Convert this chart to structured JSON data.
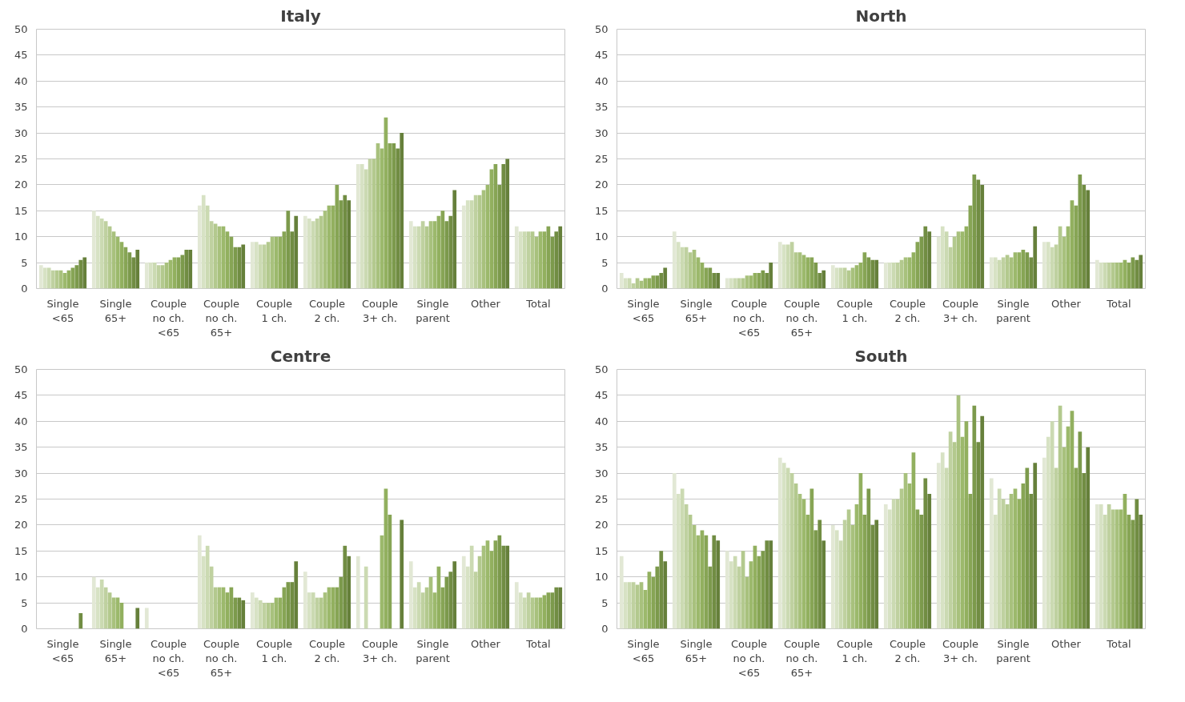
{
  "chart_data": [
    {
      "type": "bar",
      "title": "Italy",
      "categories": [
        "Single\n<65",
        "Single\n65+",
        "Couple\nno ch.\n<65",
        "Couple\nno ch.\n65+",
        "Couple\n1 ch.",
        "Couple\n2 ch.",
        "Couple\n3+ ch.",
        "Single\nparent",
        "Other",
        "Total"
      ],
      "ylim": [
        0,
        50
      ],
      "yticks": [
        0,
        5,
        10,
        15,
        20,
        25,
        30,
        35,
        40,
        45,
        50
      ],
      "grid": "y",
      "series": [
        {
          "color": "#e2e8d5",
          "values": [
            4.5,
            15,
            5,
            16,
            9,
            14,
            24,
            13,
            16,
            12
          ]
        },
        {
          "color": "#d7e2c4",
          "values": [
            4,
            14,
            5,
            18,
            9,
            13.5,
            24,
            12,
            17,
            11
          ]
        },
        {
          "color": "#cbdab2",
          "values": [
            4,
            13.5,
            5,
            16,
            8.5,
            13,
            23,
            12,
            17,
            11
          ]
        },
        {
          "color": "#bfd1a0",
          "values": [
            3.5,
            13,
            4.5,
            13,
            8.5,
            13.5,
            25,
            13,
            18,
            11
          ]
        },
        {
          "color": "#b3c98e",
          "values": [
            3.5,
            12,
            4.5,
            12.5,
            9,
            14,
            25,
            12,
            18,
            11
          ]
        },
        {
          "color": "#a8c17d",
          "values": [
            3.5,
            11,
            5,
            12,
            10,
            15,
            28,
            13,
            19,
            10
          ]
        },
        {
          "color": "#9cb96c",
          "values": [
            3,
            10,
            5.5,
            12,
            10,
            16,
            27,
            13,
            20,
            11
          ]
        },
        {
          "color": "#92b05f",
          "values": [
            3.5,
            9,
            6,
            11,
            10,
            16,
            33,
            14,
            23,
            11
          ]
        },
        {
          "color": "#87a555",
          "values": [
            4,
            8,
            6,
            10,
            11,
            20,
            28,
            15,
            24,
            12
          ]
        },
        {
          "color": "#7c9a4c",
          "values": [
            4.5,
            7,
            6.5,
            8,
            15,
            17,
            28,
            13,
            20,
            10
          ]
        },
        {
          "color": "#718d43",
          "values": [
            5.5,
            6,
            7.5,
            8,
            11,
            18,
            27,
            14,
            24,
            11
          ]
        },
        {
          "color": "#66803b",
          "values": [
            6,
            7.5,
            7.5,
            8.5,
            14,
            17,
            30,
            19,
            25,
            12
          ]
        }
      ]
    },
    {
      "type": "bar",
      "title": "North",
      "categories": [
        "Single\n<65",
        "Single\n65+",
        "Couple\nno ch.\n<65",
        "Couple\nno ch.\n65+",
        "Couple\n1 ch.",
        "Couple\n2 ch.",
        "Couple\n3+ ch.",
        "Single\nparent",
        "Other",
        "Total"
      ],
      "ylim": [
        0,
        50
      ],
      "yticks": [
        0,
        5,
        10,
        15,
        20,
        25,
        30,
        35,
        40,
        45,
        50
      ],
      "grid": "y",
      "series": [
        {
          "color": "#e2e8d5",
          "values": [
            3,
            11,
            2,
            9,
            4.5,
            5,
            10,
            6,
            9,
            5.5
          ]
        },
        {
          "color": "#d7e2c4",
          "values": [
            2,
            9,
            2,
            8.5,
            4,
            5,
            12,
            6,
            9,
            5
          ]
        },
        {
          "color": "#cbdab2",
          "values": [
            2,
            8,
            2,
            8.5,
            4,
            5,
            11,
            5.5,
            8,
            5
          ]
        },
        {
          "color": "#bfd1a0",
          "values": [
            1,
            8,
            2,
            9,
            4,
            5,
            8,
            6,
            8.5,
            5
          ]
        },
        {
          "color": "#b3c98e",
          "values": [
            2,
            7,
            2,
            7,
            3.5,
            5.5,
            10,
            6.5,
            12,
            5
          ]
        },
        {
          "color": "#a8c17d",
          "values": [
            1.5,
            7.5,
            2.5,
            7,
            4,
            6,
            11,
            6,
            10,
            5
          ]
        },
        {
          "color": "#9cb96c",
          "values": [
            2,
            6,
            2.5,
            6.5,
            4.5,
            6,
            11,
            7,
            12,
            5
          ]
        },
        {
          "color": "#92b05f",
          "values": [
            2,
            5,
            3,
            6,
            5,
            7,
            12,
            7,
            17,
            5.5
          ]
        },
        {
          "color": "#87a555",
          "values": [
            2.5,
            4,
            3,
            6,
            7,
            9,
            16,
            7.5,
            16,
            5
          ]
        },
        {
          "color": "#7c9a4c",
          "values": [
            2.5,
            4,
            3.5,
            5,
            6,
            10,
            22,
            7,
            22,
            6
          ]
        },
        {
          "color": "#718d43",
          "values": [
            3,
            3,
            3,
            3,
            5.5,
            12,
            21,
            6,
            20,
            5.5
          ]
        },
        {
          "color": "#66803b",
          "values": [
            4,
            3,
            5,
            3.5,
            5.5,
            11,
            20,
            12,
            19,
            6.5
          ]
        }
      ]
    },
    {
      "type": "bar",
      "title": "Centre",
      "categories": [
        "Single\n<65",
        "Single\n65+",
        "Couple\nno ch.\n<65",
        "Couple\nno ch.\n65+",
        "Couple\n1 ch.",
        "Couple\n2 ch.",
        "Couple\n3+ ch.",
        "Single\nparent",
        "Other",
        "Total"
      ],
      "ylim": [
        0,
        50
      ],
      "yticks": [
        0,
        5,
        10,
        15,
        20,
        25,
        30,
        35,
        40,
        45,
        50
      ],
      "grid": "y",
      "series": [
        {
          "color": "#e2e8d5",
          "values": [
            null,
            10,
            4,
            18,
            7,
            11,
            14,
            13,
            14,
            9
          ]
        },
        {
          "color": "#d7e2c4",
          "values": [
            null,
            8,
            null,
            14,
            6,
            7,
            null,
            8,
            12,
            7
          ]
        },
        {
          "color": "#cbdab2",
          "values": [
            null,
            9.5,
            null,
            16,
            5.5,
            7,
            12,
            9,
            16,
            6
          ]
        },
        {
          "color": "#bfd1a0",
          "values": [
            null,
            8,
            null,
            12,
            5,
            6,
            null,
            7,
            11,
            7
          ]
        },
        {
          "color": "#b3c98e",
          "values": [
            null,
            7,
            null,
            8,
            5,
            6,
            null,
            8,
            14,
            6
          ]
        },
        {
          "color": "#a8c17d",
          "values": [
            null,
            6,
            null,
            8,
            5,
            7,
            null,
            10,
            16,
            6
          ]
        },
        {
          "color": "#9cb96c",
          "values": [
            null,
            6,
            null,
            8,
            6,
            8,
            18,
            7,
            17,
            6
          ]
        },
        {
          "color": "#92b05f",
          "values": [
            null,
            5,
            null,
            7,
            6,
            8,
            27,
            12,
            15,
            6.5
          ]
        },
        {
          "color": "#87a555",
          "values": [
            null,
            null,
            null,
            8,
            8,
            8,
            22,
            8,
            17,
            7
          ]
        },
        {
          "color": "#7c9a4c",
          "values": [
            null,
            null,
            null,
            6,
            9,
            10,
            null,
            10,
            18,
            7
          ]
        },
        {
          "color": "#718d43",
          "values": [
            3,
            null,
            null,
            6,
            9,
            16,
            null,
            11,
            16,
            8
          ]
        },
        {
          "color": "#66803b",
          "values": [
            null,
            4,
            null,
            5.5,
            13,
            14,
            21,
            13,
            16,
            8
          ]
        }
      ]
    },
    {
      "type": "bar",
      "title": "South",
      "categories": [
        "Single\n<65",
        "Single\n65+",
        "Couple\nno ch.\n<65",
        "Couple\nno ch.\n65+",
        "Couple\n1 ch.",
        "Couple\n2 ch.",
        "Couple\n3+ ch.",
        "Single\nparent",
        "Other",
        "Total"
      ],
      "ylim": [
        0,
        50
      ],
      "yticks": [
        0,
        5,
        10,
        15,
        20,
        25,
        30,
        35,
        40,
        45,
        50
      ],
      "grid": "y",
      "series": [
        {
          "color": "#e2e8d5",
          "values": [
            14,
            30,
            15,
            33,
            20,
            24,
            32,
            29,
            33,
            24
          ]
        },
        {
          "color": "#d7e2c4",
          "values": [
            9,
            26,
            13,
            32,
            19,
            23,
            34,
            22,
            37,
            24
          ]
        },
        {
          "color": "#cbdab2",
          "values": [
            9,
            27,
            14,
            31,
            17,
            25,
            31,
            27,
            40,
            22
          ]
        },
        {
          "color": "#bfd1a0",
          "values": [
            9,
            24,
            12,
            30,
            21,
            25,
            38,
            25,
            31,
            24
          ]
        },
        {
          "color": "#b3c98e",
          "values": [
            8.5,
            22,
            15,
            28,
            23,
            27,
            36,
            24,
            43,
            23
          ]
        },
        {
          "color": "#a8c17d",
          "values": [
            9,
            20,
            10,
            26,
            20,
            30,
            45,
            26,
            35,
            23
          ]
        },
        {
          "color": "#9cb96c",
          "values": [
            7.5,
            18,
            13,
            25,
            24,
            28,
            37,
            27,
            39,
            23
          ]
        },
        {
          "color": "#92b05f",
          "values": [
            11,
            19,
            16,
            22,
            30,
            34,
            40,
            25,
            42,
            26
          ]
        },
        {
          "color": "#87a555",
          "values": [
            10,
            18,
            14,
            27,
            22,
            23,
            26,
            28,
            31,
            22
          ]
        },
        {
          "color": "#7c9a4c",
          "values": [
            12,
            12,
            15,
            19,
            27,
            22,
            43,
            31,
            38,
            21
          ]
        },
        {
          "color": "#718d43",
          "values": [
            15,
            18,
            17,
            21,
            20,
            29,
            36,
            26,
            30,
            25
          ]
        },
        {
          "color": "#66803b",
          "values": [
            13,
            17,
            17,
            17,
            21,
            26,
            41,
            32,
            35,
            22
          ]
        }
      ]
    }
  ]
}
